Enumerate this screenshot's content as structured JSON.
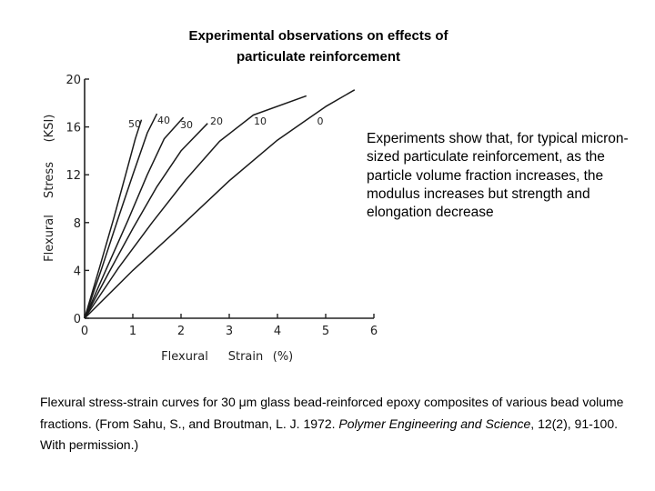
{
  "slide": {
    "title_lines": [
      "Experimental observations on effects of",
      "particulate reinforcement"
    ],
    "side_note": "Experiments show that, for typical micron-sized particulate reinforcement, as the particle volume fraction increases, the modulus increases but strength and elongation decrease",
    "caption": {
      "part1": "Flexural stress-strain curves for 30 μm glass bead-reinforced epoxy composites of various bead volume fractions. (From Sahu, S., and Broutman, L. J. 1972.",
      "journal": "Polymer Engineering and Science",
      "part2": ", 12(2), 91-100. With permission.)"
    }
  },
  "chart_data": {
    "type": "line",
    "xlabel_parts": [
      "Flexural",
      "Strain",
      "(%)"
    ],
    "ylabel_parts": [
      "Flexural",
      "Stress",
      "(KSI)"
    ],
    "xlim": [
      0,
      6
    ],
    "ylim": [
      0,
      20
    ],
    "xticks": [
      0,
      1,
      2,
      3,
      4,
      5,
      6
    ],
    "yticks": [
      0,
      4,
      8,
      12,
      16,
      20
    ],
    "series": [
      {
        "name": "50",
        "points": [
          [
            0,
            0
          ],
          [
            0.3,
            4.1
          ],
          [
            0.6,
            8.3
          ],
          [
            0.85,
            12.0
          ],
          [
            1.05,
            15.0
          ],
          [
            1.18,
            16.6
          ]
        ]
      },
      {
        "name": "40",
        "points": [
          [
            0,
            0
          ],
          [
            0.35,
            4.1
          ],
          [
            0.7,
            8.4
          ],
          [
            1.0,
            12.0
          ],
          [
            1.3,
            15.5
          ],
          [
            1.5,
            17.1
          ]
        ]
      },
      {
        "name": "30",
        "points": [
          [
            0,
            0
          ],
          [
            0.45,
            4.1
          ],
          [
            0.9,
            8.2
          ],
          [
            1.3,
            12.0
          ],
          [
            1.65,
            15.0
          ],
          [
            2.05,
            16.8
          ]
        ]
      },
      {
        "name": "20",
        "points": [
          [
            0,
            0
          ],
          [
            0.5,
            3.8
          ],
          [
            1.0,
            7.5
          ],
          [
            1.5,
            11.0
          ],
          [
            2.0,
            14.0
          ],
          [
            2.55,
            16.3
          ]
        ]
      },
      {
        "name": "10",
        "points": [
          [
            0,
            0
          ],
          [
            0.7,
            4.2
          ],
          [
            1.4,
            8.0
          ],
          [
            2.1,
            11.6
          ],
          [
            2.8,
            14.8
          ],
          [
            3.5,
            17.0
          ],
          [
            4.6,
            18.6
          ]
        ]
      },
      {
        "name": "0",
        "points": [
          [
            0,
            0
          ],
          [
            1.0,
            4.0
          ],
          [
            2.0,
            7.7
          ],
          [
            3.0,
            11.5
          ],
          [
            4.0,
            14.9
          ],
          [
            5.0,
            17.7
          ],
          [
            5.6,
            19.1
          ]
        ]
      }
    ]
  }
}
